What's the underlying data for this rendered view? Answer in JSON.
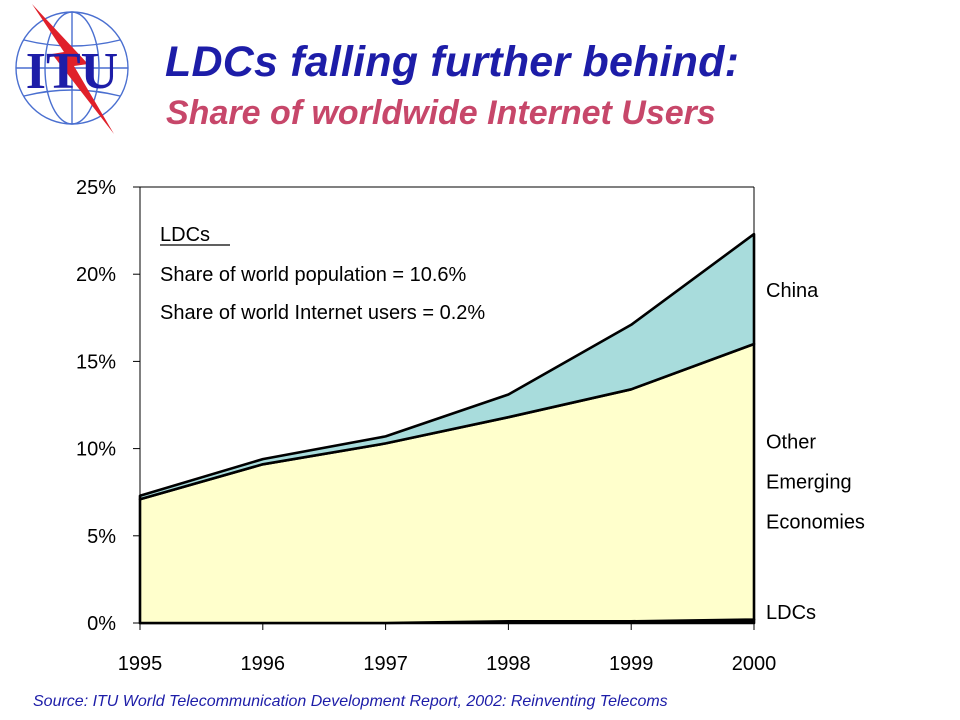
{
  "logo": {
    "text": "ITU"
  },
  "title": "LDCs falling further behind:",
  "subtitle": "Share of worldwide Internet Users",
  "source": "Source: ITU World Telecommunication Development Report, 2002: Reinventing Telecoms",
  "annotation": {
    "heading": "LDCs",
    "line1": "Share of world population = 10.6%",
    "line2": "Share of world Internet users = 0.2%"
  },
  "colors": {
    "title": "#1d1da8",
    "subtitle": "#c7476a",
    "other_emerging_fill": "#ffffcc",
    "china_fill": "#a8dcdc",
    "ldc_fill": "#000000"
  },
  "chart_data": {
    "type": "area",
    "stacked": true,
    "x": [
      "1995",
      "1996",
      "1997",
      "1998",
      "1999",
      "2000"
    ],
    "ylim": [
      0,
      25
    ],
    "yticks": [
      "0%",
      "5%",
      "10%",
      "15%",
      "20%",
      "25%"
    ],
    "grid": false,
    "series": [
      {
        "name": "LDCs",
        "values": [
          0.0,
          0.0,
          0.0,
          0.1,
          0.1,
          0.2
        ]
      },
      {
        "name": "Other Emerging Economies",
        "values": [
          7.1,
          9.1,
          10.3,
          11.7,
          13.3,
          15.8
        ]
      },
      {
        "name": "China",
        "values": [
          0.2,
          0.3,
          0.4,
          1.3,
          3.7,
          6.3
        ]
      }
    ],
    "series_labels": [
      {
        "lines": [
          "LDCs"
        ]
      },
      {
        "lines": [
          "Other",
          "Emerging",
          "Economies"
        ]
      },
      {
        "lines": [
          "China"
        ]
      }
    ]
  }
}
